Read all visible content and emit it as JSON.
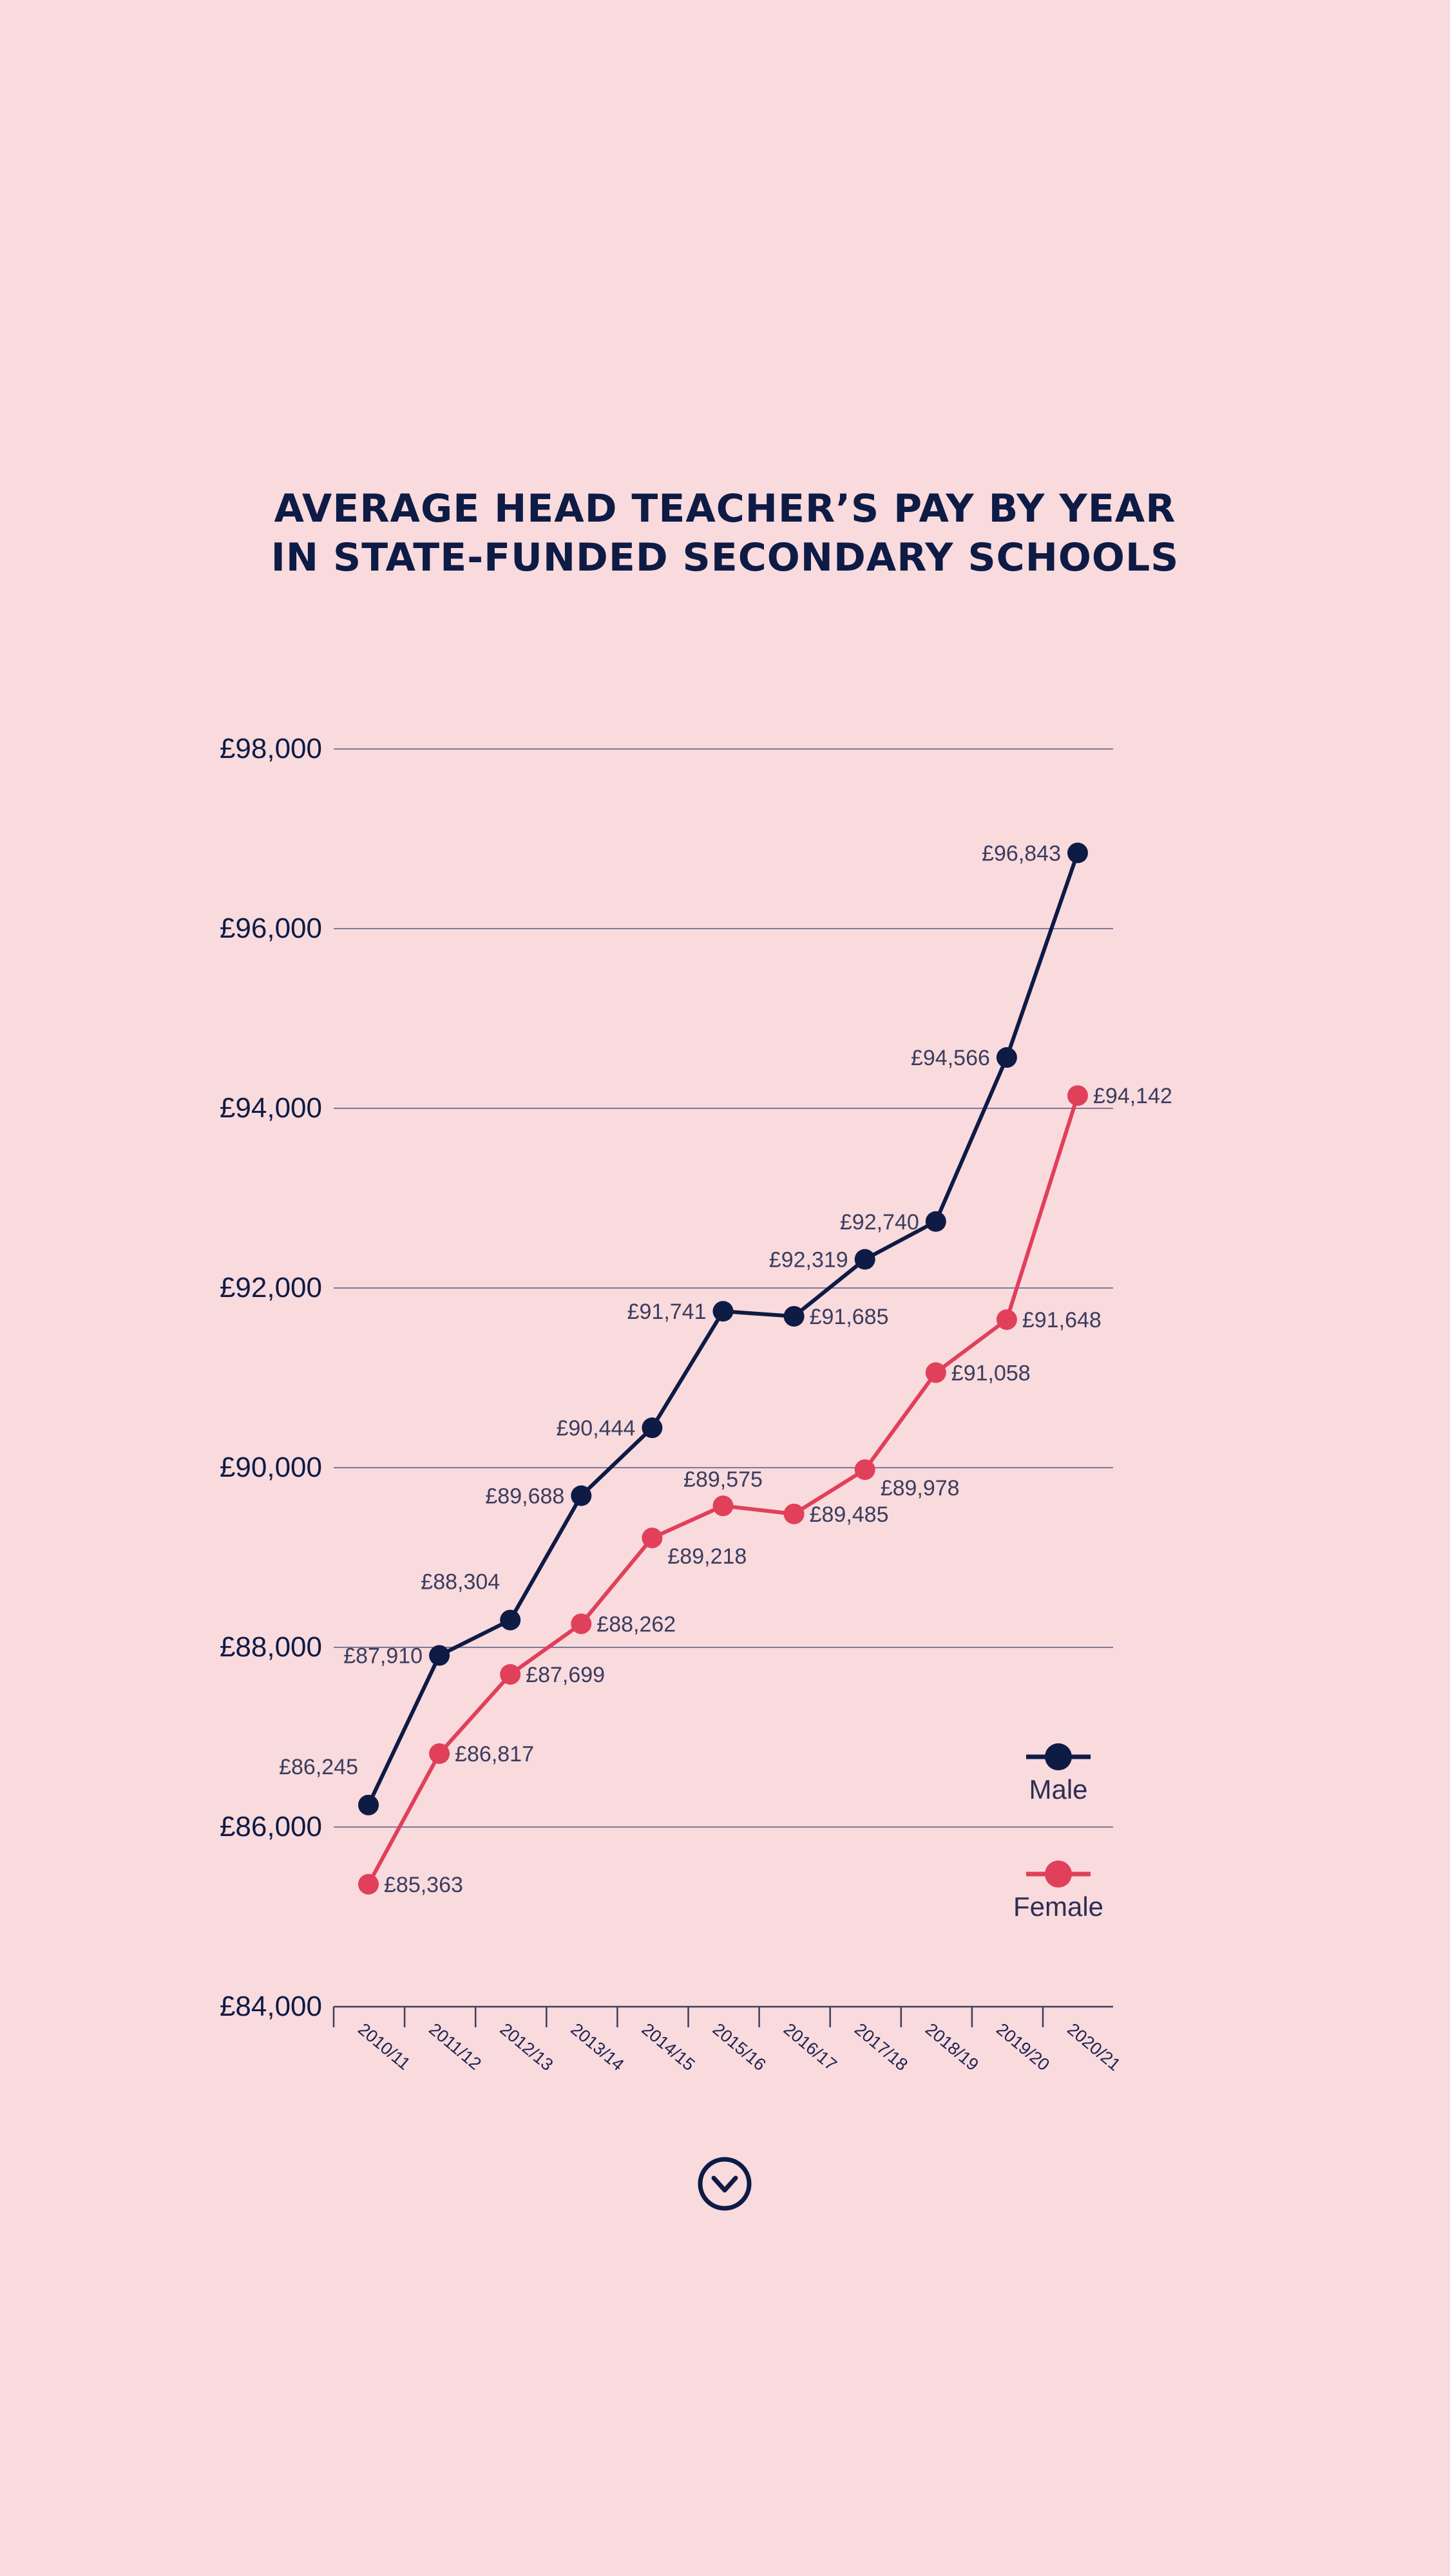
{
  "title": {
    "line1": "AVERAGE HEAD TEACHER’S PAY BY YEAR",
    "line2": "IN STATE-FUNDED SECONDARY SCHOOLS"
  },
  "colors": {
    "background": "#f9dadd",
    "male": "#0d1b45",
    "female": "#e0405a",
    "grid": "#6b6b8a"
  },
  "scroll_icon": "chevron-down-circle-icon",
  "chart_data": {
    "type": "line",
    "title": "AVERAGE HEAD TEACHER’S PAY BY YEAR IN STATE-FUNDED SECONDARY SCHOOLS",
    "categories": [
      "2010/11",
      "2011/12",
      "2012/13",
      "2013/14",
      "2014/15",
      "2015/16",
      "2016/17",
      "2017/18",
      "2018/19",
      "2019/20",
      "2020/21"
    ],
    "yticks": [
      "£84,000",
      "£86,000",
      "£88,000",
      "£90,000",
      "£92,000",
      "£94,000",
      "£96,000",
      "£98,000"
    ],
    "ytick_values": [
      84000,
      86000,
      88000,
      90000,
      92000,
      94000,
      96000,
      98000
    ],
    "ylim": [
      84000,
      98000
    ],
    "xlabel": "",
    "ylabel": "",
    "grid": true,
    "legend_position": "bottom-right",
    "series": [
      {
        "name": "Male",
        "color": "#0d1b45",
        "values": [
          86245,
          87910,
          88304,
          89688,
          90444,
          91741,
          91685,
          92319,
          92740,
          94566,
          96843
        ],
        "labels": [
          "£86,245",
          "£87,910",
          "£88,304",
          "£89,688",
          "£90,444",
          "£91,741",
          "£91,685",
          "£92,319",
          "£92,740",
          "£94,566",
          "£96,843"
        ],
        "label_sides": [
          "top-left",
          "left",
          "top-left",
          "left",
          "left",
          "left",
          "right",
          "left",
          "left",
          "left",
          "left"
        ]
      },
      {
        "name": "Female",
        "color": "#e0405a",
        "values": [
          85363,
          86817,
          87699,
          88262,
          89218,
          89575,
          89485,
          89978,
          91058,
          91648,
          94142
        ],
        "labels": [
          "£85,363",
          "£86,817",
          "£87,699",
          "£88,262",
          "£89,218",
          "£89,575",
          "£89,485",
          "£89,978",
          "£91,058",
          "£91,648",
          "£94,142"
        ],
        "label_sides": [
          "right",
          "right",
          "right",
          "right",
          "below-right",
          "top",
          "right",
          "below-right",
          "right",
          "right",
          "right"
        ]
      }
    ]
  }
}
